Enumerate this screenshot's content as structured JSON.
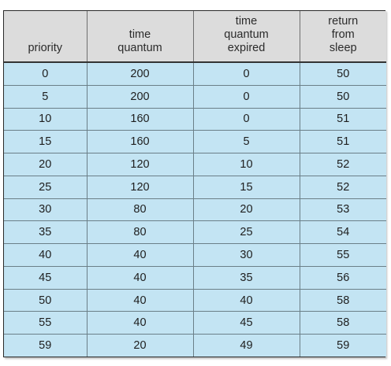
{
  "table": {
    "headers": [
      [
        "priority"
      ],
      [
        "time",
        "quantum"
      ],
      [
        "time",
        "quantum",
        "expired"
      ],
      [
        "return",
        "from",
        "sleep"
      ]
    ],
    "rows": [
      [
        "0",
        "200",
        "0",
        "50"
      ],
      [
        "5",
        "200",
        "0",
        "50"
      ],
      [
        "10",
        "160",
        "0",
        "51"
      ],
      [
        "15",
        "160",
        "5",
        "51"
      ],
      [
        "20",
        "120",
        "10",
        "52"
      ],
      [
        "25",
        "120",
        "15",
        "52"
      ],
      [
        "30",
        "80",
        "20",
        "53"
      ],
      [
        "35",
        "80",
        "25",
        "54"
      ],
      [
        "40",
        "40",
        "30",
        "55"
      ],
      [
        "45",
        "40",
        "35",
        "56"
      ],
      [
        "50",
        "40",
        "40",
        "58"
      ],
      [
        "55",
        "40",
        "45",
        "58"
      ],
      [
        "59",
        "20",
        "49",
        "59"
      ]
    ],
    "colors": {
      "header_bg": "#dcdcdc",
      "body_bg": "#c3e4f3",
      "border": "#2a2a2a"
    }
  }
}
